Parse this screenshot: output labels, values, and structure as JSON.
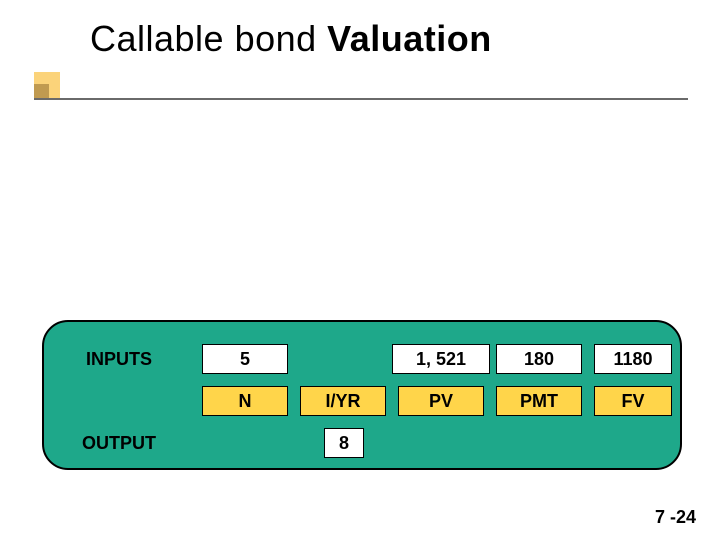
{
  "title": {
    "light": "Callable bond ",
    "bold": "Valuation"
  },
  "colors": {
    "panel_bg": "#1ea88a",
    "panel_border": "#000000",
    "value_bg": "#ffffff",
    "key_bg": "#ffd54a",
    "accent_outer": "#fbd37a",
    "accent_inner": "#c09a50",
    "rule": "#6a6a6a"
  },
  "labels": {
    "inputs": "INPUTS",
    "output": "OUTPUT",
    "n": "N",
    "iyr": "I/YR",
    "pv": "PV",
    "pmt": "PMT",
    "fv": "FV"
  },
  "values": {
    "n": "5",
    "iyr": "",
    "pv": "1, 521",
    "pmt": "180",
    "fv": "1180",
    "output": "8"
  },
  "pagenum": "7 -24"
}
